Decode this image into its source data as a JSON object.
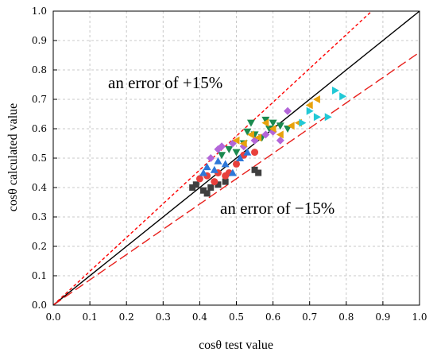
{
  "chart_data": {
    "type": "scatter",
    "xlabel": "cosθ test value",
    "ylabel": "cosθ calculated value",
    "xlim": [
      0.0,
      1.0
    ],
    "ylim": [
      0.0,
      1.0
    ],
    "xticks": [
      "0.0",
      "0.1",
      "0.2",
      "0.3",
      "0.4",
      "0.5",
      "0.6",
      "0.7",
      "0.8",
      "0.9",
      "1.0"
    ],
    "yticks": [
      "0.0",
      "0.1",
      "0.2",
      "0.3",
      "0.4",
      "0.5",
      "0.6",
      "0.7",
      "0.8",
      "0.9",
      "1.0"
    ],
    "grid": true,
    "annotations": [
      "an error of +15%",
      "an error of −15%"
    ],
    "reference_lines": [
      {
        "slope": 1.0,
        "style": "solid",
        "color": "#000000"
      },
      {
        "slope": 1.15,
        "style": "dotted",
        "color": "#ff0000"
      },
      {
        "slope": 0.86,
        "style": "dashed",
        "color": "#e8201c"
      }
    ],
    "series": [
      {
        "marker": "square",
        "color": "#3f3f3f",
        "points": [
          [
            0.38,
            0.4
          ],
          [
            0.39,
            0.41
          ],
          [
            0.41,
            0.39
          ],
          [
            0.42,
            0.38
          ],
          [
            0.43,
            0.4
          ],
          [
            0.45,
            0.41
          ],
          [
            0.47,
            0.42
          ],
          [
            0.55,
            0.46
          ],
          [
            0.56,
            0.45
          ]
        ]
      },
      {
        "marker": "circle",
        "color": "#e8403c",
        "points": [
          [
            0.4,
            0.43
          ],
          [
            0.42,
            0.44
          ],
          [
            0.44,
            0.42
          ],
          [
            0.45,
            0.45
          ],
          [
            0.47,
            0.44
          ],
          [
            0.48,
            0.45
          ],
          [
            0.5,
            0.48
          ],
          [
            0.52,
            0.51
          ],
          [
            0.55,
            0.52
          ]
        ]
      },
      {
        "marker": "triangle-up",
        "color": "#2e78d9",
        "points": [
          [
            0.41,
            0.45
          ],
          [
            0.42,
            0.47
          ],
          [
            0.44,
            0.46
          ],
          [
            0.45,
            0.49
          ],
          [
            0.47,
            0.48
          ],
          [
            0.49,
            0.45
          ],
          [
            0.51,
            0.5
          ],
          [
            0.53,
            0.52
          ]
        ]
      },
      {
        "marker": "triangle-down",
        "color": "#1b8a4f",
        "points": [
          [
            0.46,
            0.51
          ],
          [
            0.48,
            0.53
          ],
          [
            0.5,
            0.52
          ],
          [
            0.52,
            0.55
          ],
          [
            0.53,
            0.59
          ],
          [
            0.54,
            0.62
          ],
          [
            0.55,
            0.58
          ],
          [
            0.57,
            0.57
          ],
          [
            0.59,
            0.6
          ],
          [
            0.6,
            0.62
          ],
          [
            0.62,
            0.61
          ],
          [
            0.64,
            0.6
          ],
          [
            0.58,
            0.63
          ]
        ]
      },
      {
        "marker": "diamond",
        "color": "#b366d9",
        "points": [
          [
            0.43,
            0.5
          ],
          [
            0.45,
            0.53
          ],
          [
            0.46,
            0.54
          ],
          [
            0.49,
            0.55
          ],
          [
            0.52,
            0.54
          ],
          [
            0.55,
            0.56
          ],
          [
            0.58,
            0.58
          ],
          [
            0.6,
            0.59
          ],
          [
            0.62,
            0.56
          ],
          [
            0.64,
            0.66
          ]
        ]
      },
      {
        "marker": "triangle-left",
        "color": "#e8a20c",
        "points": [
          [
            0.5,
            0.56
          ],
          [
            0.52,
            0.55
          ],
          [
            0.54,
            0.58
          ],
          [
            0.56,
            0.57
          ],
          [
            0.58,
            0.62
          ],
          [
            0.6,
            0.6
          ],
          [
            0.62,
            0.58
          ],
          [
            0.65,
            0.61
          ],
          [
            0.67,
            0.62
          ],
          [
            0.7,
            0.68
          ],
          [
            0.72,
            0.7
          ]
        ]
      },
      {
        "marker": "triangle-right",
        "color": "#22c9d6",
        "points": [
          [
            0.68,
            0.62
          ],
          [
            0.7,
            0.66
          ],
          [
            0.72,
            0.64
          ],
          [
            0.75,
            0.64
          ],
          [
            0.77,
            0.73
          ],
          [
            0.79,
            0.71
          ]
        ]
      }
    ]
  }
}
